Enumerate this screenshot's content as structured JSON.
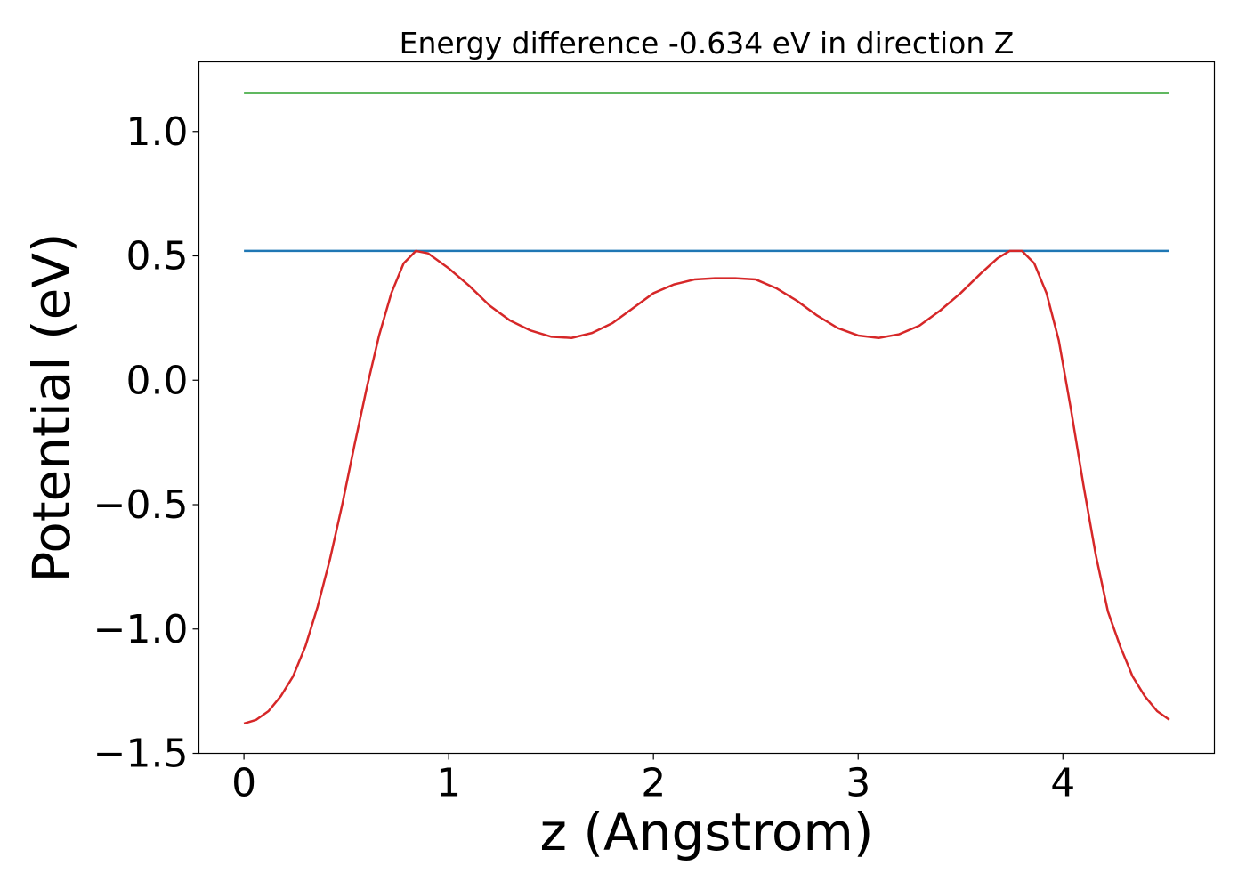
{
  "chart_data": {
    "type": "line",
    "title": "Energy difference -0.634 eV in direction Z",
    "xlabel": "z (Angstrom)",
    "ylabel": "Potential (eV)",
    "xlim": [
      -0.22,
      4.74
    ],
    "ylim": [
      -1.5,
      1.28
    ],
    "xticks": [
      0,
      1,
      2,
      3,
      4
    ],
    "yticks": [
      -1.5,
      -1.0,
      -0.5,
      0.0,
      0.5,
      1.0
    ],
    "xtick_labels": [
      "0",
      "1",
      "2",
      "3",
      "4"
    ],
    "ytick_labels": [
      "−1.5",
      "−1.0",
      "−0.5",
      "0.0",
      "0.5",
      "1.0"
    ],
    "grid": false,
    "series": [
      {
        "color": "#2ca02c",
        "x": [
          0,
          4.52
        ],
        "y": [
          1.155,
          1.155
        ]
      },
      {
        "color": "#1f77b4",
        "x": [
          0,
          4.52
        ],
        "y": [
          0.52,
          0.52
        ]
      },
      {
        "color": "#d62728",
        "x": [
          0.0,
          0.06,
          0.12,
          0.18,
          0.24,
          0.3,
          0.36,
          0.42,
          0.48,
          0.54,
          0.6,
          0.66,
          0.72,
          0.78,
          0.84,
          0.9,
          1.0,
          1.1,
          1.2,
          1.3,
          1.4,
          1.5,
          1.6,
          1.7,
          1.8,
          1.9,
          2.0,
          2.1,
          2.2,
          2.3,
          2.4,
          2.5,
          2.6,
          2.7,
          2.8,
          2.9,
          3.0,
          3.1,
          3.2,
          3.3,
          3.4,
          3.5,
          3.6,
          3.68,
          3.74,
          3.8,
          3.86,
          3.92,
          3.98,
          4.04,
          4.1,
          4.16,
          4.22,
          4.28,
          4.34,
          4.4,
          4.46,
          4.52
        ],
        "y": [
          -1.38,
          -1.365,
          -1.33,
          -1.27,
          -1.19,
          -1.07,
          -0.91,
          -0.72,
          -0.5,
          -0.26,
          -0.03,
          0.18,
          0.35,
          0.47,
          0.52,
          0.51,
          0.45,
          0.38,
          0.3,
          0.24,
          0.2,
          0.175,
          0.17,
          0.19,
          0.23,
          0.29,
          0.35,
          0.385,
          0.405,
          0.41,
          0.41,
          0.405,
          0.37,
          0.32,
          0.26,
          0.21,
          0.18,
          0.17,
          0.185,
          0.22,
          0.28,
          0.35,
          0.43,
          0.49,
          0.52,
          0.52,
          0.47,
          0.35,
          0.16,
          -0.12,
          -0.42,
          -0.7,
          -0.93,
          -1.07,
          -1.19,
          -1.27,
          -1.33,
          -1.365
        ]
      }
    ]
  }
}
